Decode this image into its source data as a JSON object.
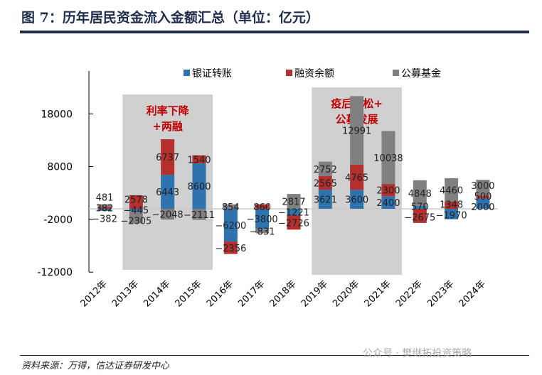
{
  "title": "图 7：历年居民资金流入金额汇总（单位：亿元）",
  "source": "资料来源：万得，信达证券研发中心",
  "watermark": "公众号 · 樊继拓投资策略",
  "colors": {
    "bank": "#2e72ae",
    "margin": "#b3302f",
    "fund": "#808080",
    "shade": "#d0d0d0",
    "annotation": "#c00000"
  },
  "chart_data": {
    "type": "bar",
    "stacked": true,
    "title": "历年居民资金流入金额汇总（单位：亿元）",
    "xlabel": "",
    "ylabel": "",
    "ylim": [
      -12000,
      26000
    ],
    "yticks": [
      18000,
      8000,
      -2000,
      -12000
    ],
    "yticklabels": [
      "18000",
      "8000",
      "-2000",
      "-12000"
    ],
    "categories": [
      "2012年",
      "2013年",
      "2014年",
      "2015年",
      "2016年",
      "2017年",
      "2018年",
      "2019年",
      "2020年",
      "2021年",
      "2022年",
      "2023年",
      "2024年"
    ],
    "series": [
      {
        "name": "银证转账",
        "values": [
          -382,
          -445,
          6443,
          8600,
          -6200,
          -3800,
          -1221,
          3621,
          3600,
          2400,
          570,
          -1970,
          2000
        ]
      },
      {
        "name": "融资余额",
        "values": [
          382,
          2578,
          6737,
          1540,
          -2356,
          860,
          -2726,
          2565,
          4765,
          2300,
          -2675,
          1348,
          500
        ]
      },
      {
        "name": "公募基金",
        "values": [
          481,
          -2305,
          -2048,
          -2111,
          854,
          -831,
          2817,
          2752,
          12991,
          10038,
          4848,
          4460,
          3000
        ]
      }
    ],
    "legend_position": "top",
    "annotations": [
      {
        "text": [
          "利率下降",
          "+两融"
        ],
        "from": "2013年",
        "to": "2015年"
      },
      {
        "text": [
          "疫后宽松+",
          "公募发展"
        ],
        "from": "2019年",
        "to": "2021年"
      }
    ]
  }
}
